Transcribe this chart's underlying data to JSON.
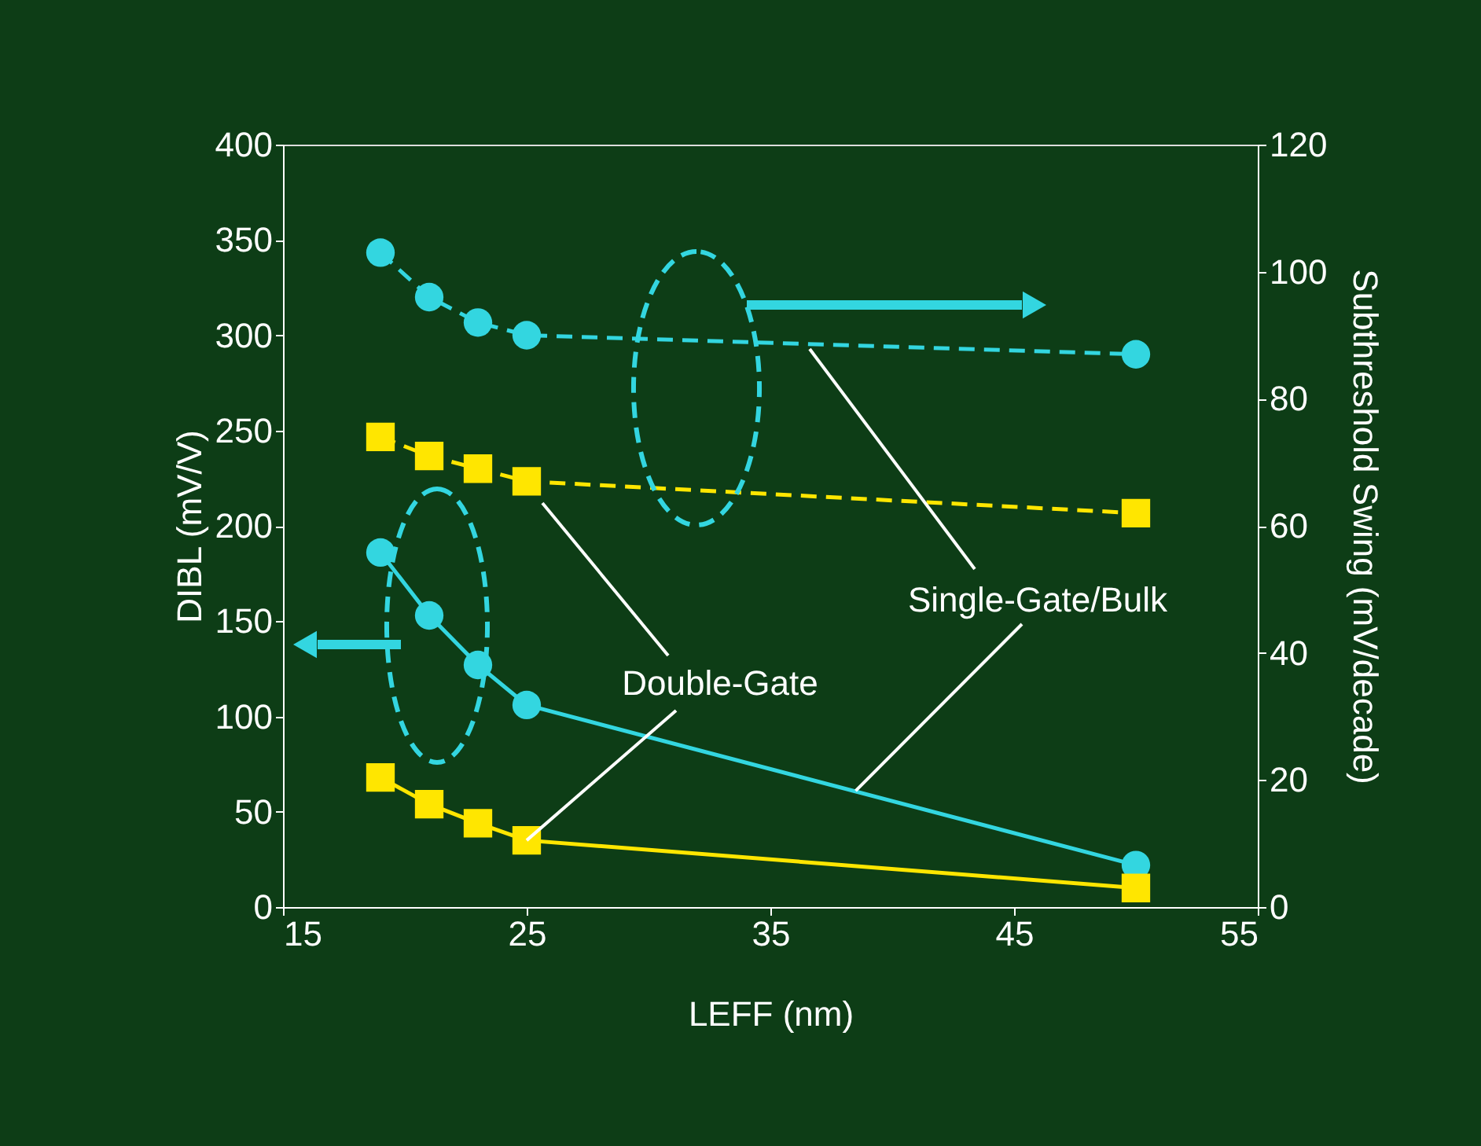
{
  "chart_data": {
    "type": "line",
    "xlabel": "LEFF (nm)",
    "ylabel": "DIBL (mV/V)",
    "y2label": "Subthreshold Swing (mV/decade)",
    "x": [
      19,
      21,
      23,
      25,
      50
    ],
    "xlim": [
      15,
      55
    ],
    "xticks": [
      15,
      25,
      35,
      45,
      55
    ],
    "ylim": [
      0,
      400
    ],
    "yticks": [
      0,
      50,
      100,
      150,
      200,
      250,
      300,
      350,
      400
    ],
    "y2lim": [
      0,
      120
    ],
    "y2ticks": [
      0,
      20,
      40,
      60,
      80,
      100,
      120
    ],
    "grid": false,
    "series": [
      {
        "color": "#33d6e0",
        "marker": "circle",
        "line_style": "solid",
        "values": [
          186,
          153,
          127,
          106,
          22
        ]
      },
      {
        "color": "#ffe600",
        "marker": "square",
        "line_style": "solid",
        "values": [
          68,
          54,
          44,
          35,
          10
        ]
      },
      {
        "color": "#33d6e0",
        "marker": "circle",
        "line_style": "dashed",
        "axis": "y2",
        "values": [
          103,
          96,
          92,
          90,
          87
        ]
      },
      {
        "color": "#ffe600",
        "marker": "square",
        "line_style": "dashed",
        "axis": "y2",
        "values": [
          74,
          71,
          69,
          67,
          62
        ]
      }
    ],
    "annotations": [
      {
        "text": "Double-Gate",
        "x": 25,
        "y": 35
      },
      {
        "text": "Single-Gate/Bulk",
        "x": 38.5,
        "y": 61
      }
    ]
  }
}
